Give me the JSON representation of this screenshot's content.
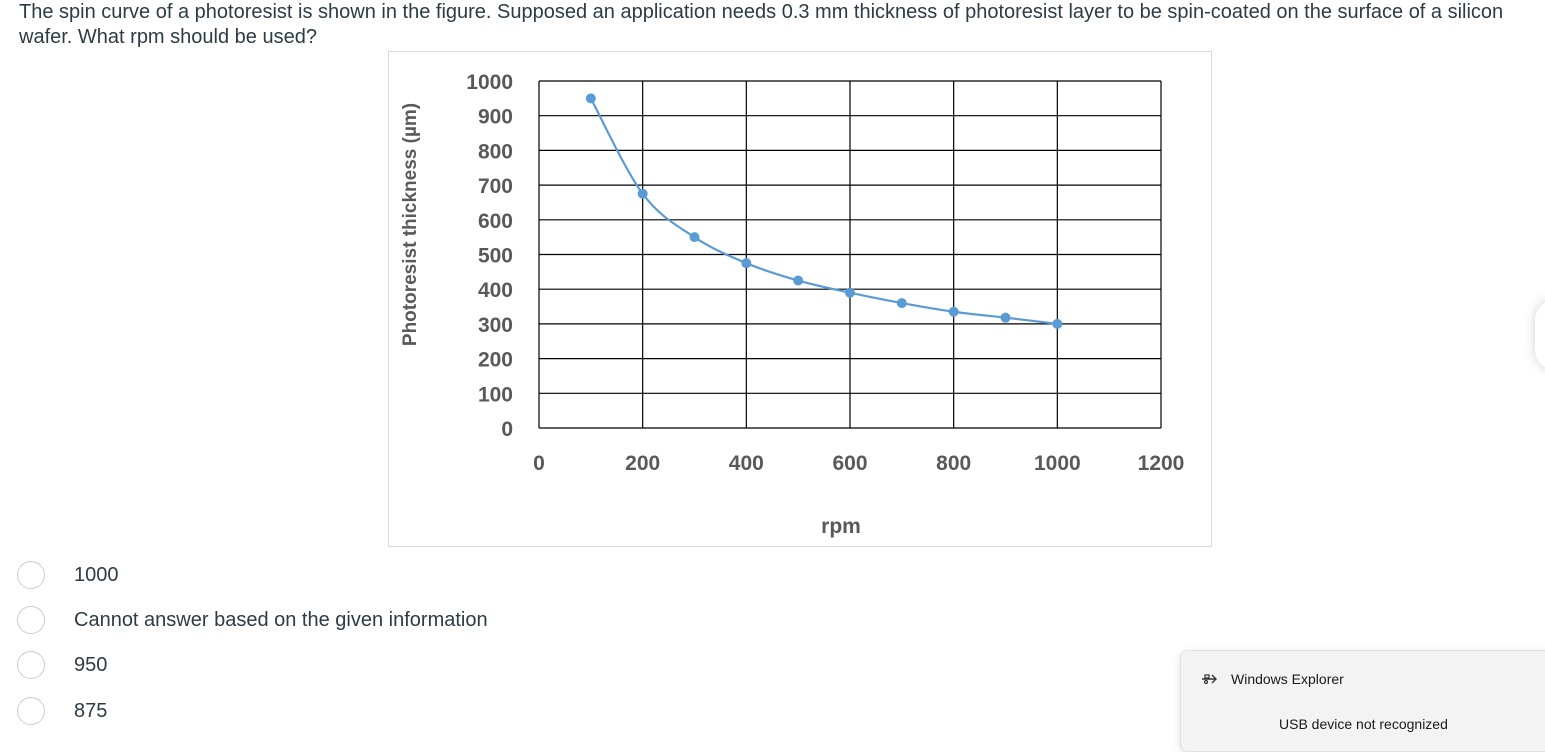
{
  "question": {
    "text": "The spin curve of a photoresist is shown in the figure. Supposed an application needs 0.3 mm thickness of photoresist layer to be spin-coated on the surface of a silicon wafer. What rpm should be used?"
  },
  "chart_data": {
    "type": "line",
    "title": "",
    "xlabel": "rpm",
    "ylabel": "Photoresist thickness (µm)",
    "xlim": [
      0,
      1200
    ],
    "ylim": [
      0,
      1000
    ],
    "xticks": [
      "0",
      "200",
      "400",
      "600",
      "800",
      "1000",
      "1200"
    ],
    "yticks": [
      "1000",
      "900",
      "800",
      "700",
      "600",
      "500",
      "400",
      "300",
      "200",
      "100",
      "0"
    ],
    "grid": true,
    "series": [
      {
        "color": "#5b9bd5",
        "x": [
          100,
          200,
          300,
          400,
          500,
          600,
          700,
          800,
          900,
          1000
        ],
        "y": [
          950,
          675,
          550,
          475,
          425,
          390,
          360,
          335,
          318,
          300
        ]
      }
    ]
  },
  "answers": [
    {
      "label": "1000"
    },
    {
      "label": "Cannot answer based on the given information"
    },
    {
      "label": "950"
    },
    {
      "label": "875"
    }
  ],
  "toast": {
    "app_name": "Windows Explorer",
    "message": "USB device not recognized",
    "icon": "usb-icon"
  }
}
